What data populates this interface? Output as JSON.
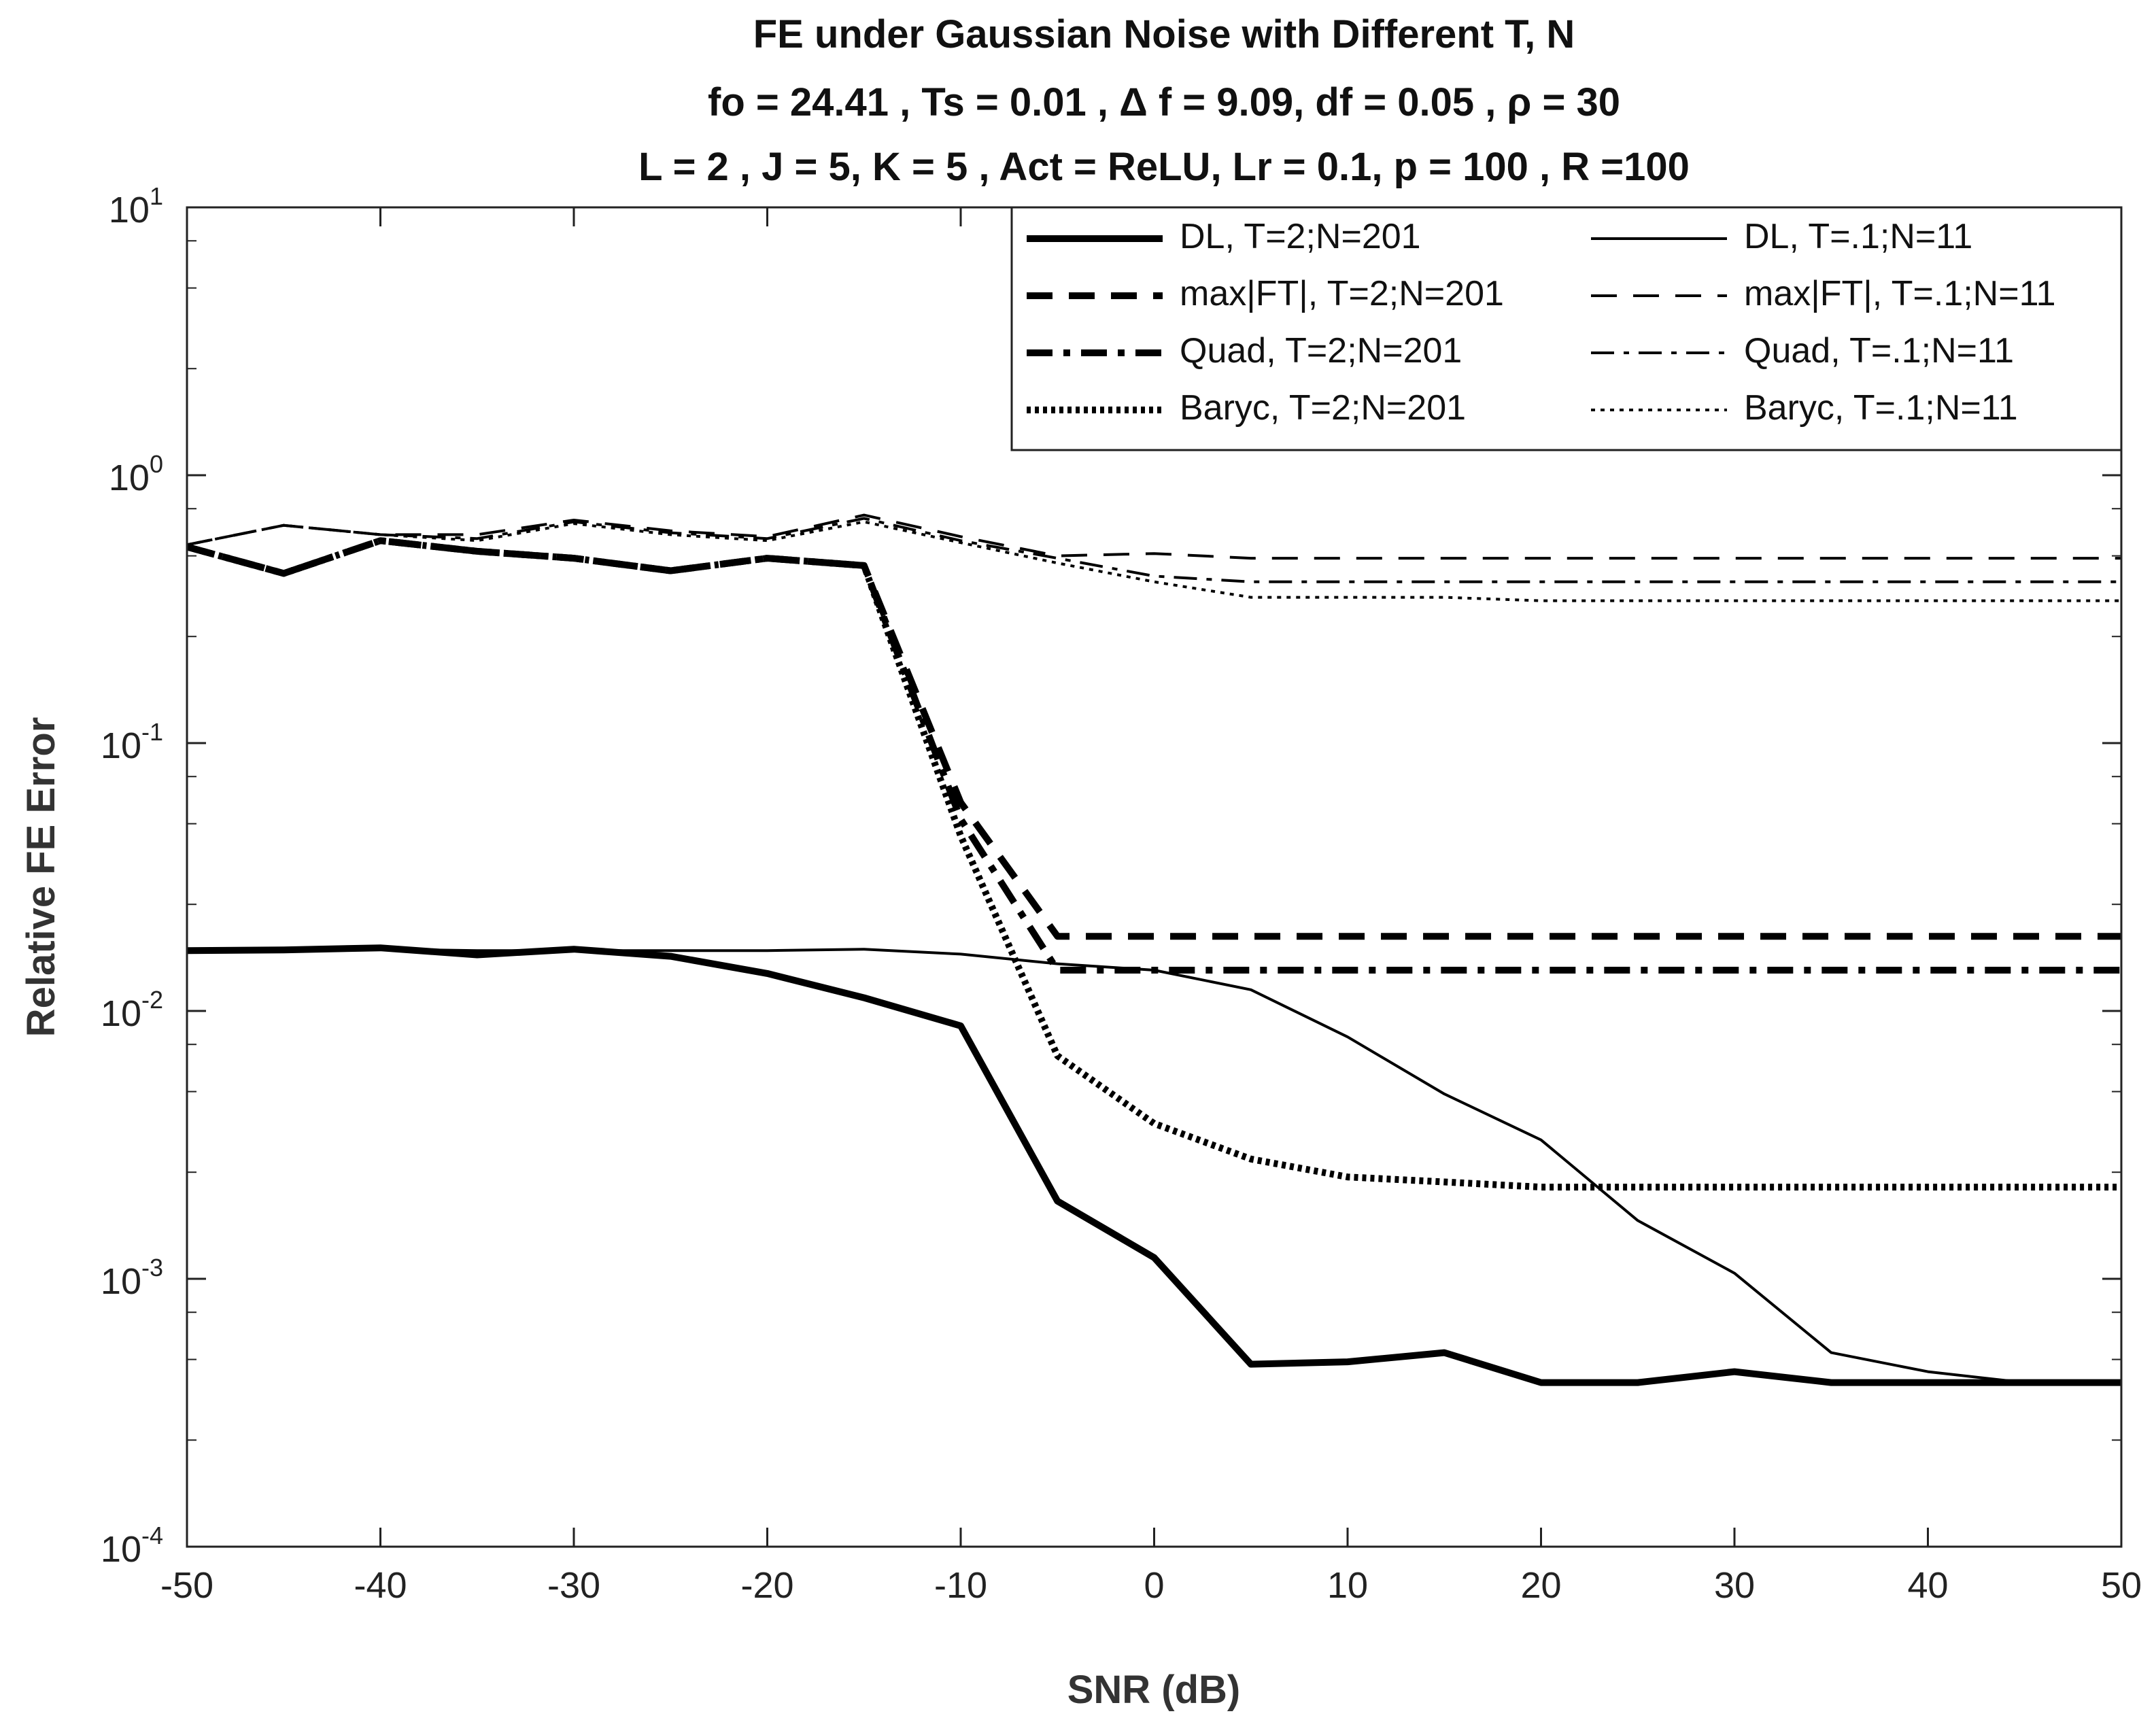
{
  "chart_data": {
    "type": "line",
    "title": [
      "FE under Gaussian Noise with Different T, N",
      "fo = 24.41 , Ts = 0.01 , Δ f = 9.09,  df = 0.05 , ρ = 30",
      "L = 2 , J = 5, K = 5 , Act = ReLU, Lr = 0.1, p = 100 , R =100"
    ],
    "xlabel": "SNR (dB)",
    "ylabel": "Relative FE Error",
    "xlim": [
      -50,
      50
    ],
    "ylim": [
      0.0001,
      10
    ],
    "yscale": "log",
    "x_ticks": [
      -50,
      -40,
      -30,
      -20,
      -10,
      0,
      10,
      20,
      30,
      40,
      50
    ],
    "x_tick_labels": [
      "-50",
      "-40",
      "-30",
      "-20",
      "-10",
      "0",
      "10",
      "20",
      "30",
      "40",
      "50"
    ],
    "y_ticks": [
      {
        "value": 0.0001,
        "base": "10",
        "exp": "-4"
      },
      {
        "value": 0.001,
        "base": "10",
        "exp": "-3"
      },
      {
        "value": 0.01,
        "base": "10",
        "exp": "-2"
      },
      {
        "value": 0.1,
        "base": "10",
        "exp": "-1"
      },
      {
        "value": 1,
        "base": "10",
        "exp": "0"
      },
      {
        "value": 10,
        "base": "10",
        "exp": "1"
      }
    ],
    "grid": false,
    "legend_position": "top-right",
    "x": [
      -50,
      -45,
      -40,
      -35,
      -30,
      -25,
      -20,
      -15,
      -10,
      -5,
      0,
      5,
      10,
      15,
      20,
      25,
      30,
      35,
      40,
      45,
      50
    ],
    "series": [
      {
        "name": "DL, T=2;N=201",
        "style": "solid-thick",
        "values": [
          0.0168,
          0.0169,
          0.0172,
          0.0162,
          0.017,
          0.016,
          0.0138,
          0.0112,
          0.0088,
          0.00195,
          0.0012,
          0.00048,
          0.00049,
          0.00053,
          0.00041,
          0.00041,
          0.00045,
          0.00041,
          0.00041,
          0.00041,
          0.00041
        ]
      },
      {
        "name": "max|FT|, T=2;N=201",
        "style": "dash-thick",
        "values": [
          0.54,
          0.43,
          0.57,
          0.52,
          0.49,
          0.44,
          0.49,
          0.46,
          0.06,
          0.019,
          0.019,
          0.019,
          0.019,
          0.019,
          0.019,
          0.019,
          0.019,
          0.019,
          0.019,
          0.019,
          0.019
        ]
      },
      {
        "name": "Quad, T=2;N=201",
        "style": "dashdot-thick",
        "values": [
          0.54,
          0.43,
          0.57,
          0.52,
          0.49,
          0.44,
          0.49,
          0.46,
          0.052,
          0.0142,
          0.0142,
          0.0142,
          0.0142,
          0.0142,
          0.0142,
          0.0142,
          0.0142,
          0.0142,
          0.0142,
          0.0142,
          0.0142
        ]
      },
      {
        "name": "Baryc, T=2;N=201",
        "style": "dot-thick",
        "values": [
          0.54,
          0.43,
          0.57,
          0.52,
          0.49,
          0.44,
          0.49,
          0.46,
          0.045,
          0.0068,
          0.0038,
          0.0028,
          0.0024,
          0.0023,
          0.0022,
          0.0022,
          0.0022,
          0.0022,
          0.0022,
          0.0022,
          0.0022
        ]
      },
      {
        "name": "DL, T=.1;N=11",
        "style": "solid-thin",
        "values": [
          0.0168,
          0.0169,
          0.017,
          0.0168,
          0.0168,
          0.0168,
          0.0168,
          0.017,
          0.0163,
          0.015,
          0.0142,
          0.012,
          0.008,
          0.0049,
          0.0033,
          0.00165,
          0.00105,
          0.00053,
          0.00045,
          0.00041,
          0.00041
        ]
      },
      {
        "name": "max|FT|, T=.1;N=11",
        "style": "dash-thin",
        "values": [
          0.55,
          0.65,
          0.6,
          0.6,
          0.68,
          0.62,
          0.59,
          0.71,
          0.59,
          0.5,
          0.51,
          0.49,
          0.49,
          0.49,
          0.49,
          0.49,
          0.49,
          0.49,
          0.49,
          0.49,
          0.49
        ]
      },
      {
        "name": "Quad, T=.1;N=11",
        "style": "dashdot-thin",
        "values": [
          0.55,
          0.65,
          0.6,
          0.58,
          0.67,
          0.61,
          0.58,
          0.69,
          0.57,
          0.49,
          0.42,
          0.4,
          0.4,
          0.4,
          0.4,
          0.4,
          0.4,
          0.4,
          0.4,
          0.4,
          0.4
        ]
      },
      {
        "name": "Baryc, T=.1;N=11",
        "style": "dot-thin",
        "values": [
          0.55,
          0.65,
          0.6,
          0.57,
          0.66,
          0.6,
          0.57,
          0.67,
          0.56,
          0.47,
          0.4,
          0.35,
          0.35,
          0.35,
          0.34,
          0.34,
          0.34,
          0.34,
          0.34,
          0.34,
          0.34
        ]
      }
    ]
  }
}
